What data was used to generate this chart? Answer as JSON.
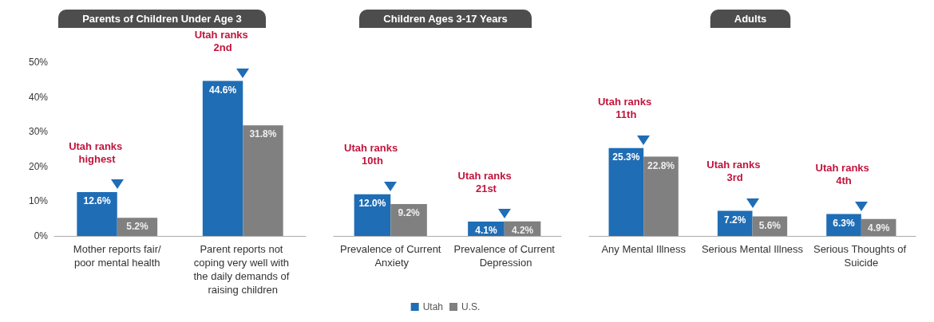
{
  "chart_data": [
    {
      "type": "bar",
      "title": "Parents of Children Under Age 3",
      "categories": [
        "Mother reports fair/poor mental health",
        "Parent reports not coping very well with the daily demands of raising children"
      ],
      "series": [
        {
          "color": "#1f6db5",
          "values": [
            12.6,
            44.6
          ],
          "value_labels": [
            "12.6%",
            "44.6%"
          ]
        },
        {
          "color": "#808080",
          "values": [
            5.2,
            31.8
          ],
          "value_labels": [
            "5.2%",
            "31.8%"
          ]
        }
      ],
      "ylim": [
        0,
        50
      ],
      "yticks": [
        {
          "value": 0,
          "label": "0%"
        },
        {
          "value": 10,
          "label": "10%"
        },
        {
          "value": 20,
          "label": "20%"
        },
        {
          "value": 30,
          "label": "30%"
        },
        {
          "value": 40,
          "label": "40%"
        },
        {
          "value": 50,
          "label": "50%"
        }
      ],
      "grid": false,
      "annotations": [
        {
          "text": "Utah ranks highest",
          "x": "Mother reports fair/poor mental health",
          "y": 12.6
        },
        {
          "text": "Utah ranks 2nd",
          "x": "Parent reports not coping very well with the daily demands of raising children",
          "y": 44.6
        }
      ]
    },
    {
      "type": "bar",
      "title": "Children Ages 3-17 Years",
      "categories": [
        "Prevalence of Current Anxiety",
        "Prevalence of Current Depression"
      ],
      "series": [
        {
          "name": "Utah",
          "color": "#1f6db5",
          "values": [
            12.0,
            4.1
          ],
          "value_labels": [
            "12.0%",
            "4.1%"
          ]
        },
        {
          "name": "U.S.",
          "color": "#808080",
          "values": [
            9.2,
            4.2
          ],
          "value_labels": [
            "9.2%",
            "4.2%"
          ]
        }
      ],
      "ylim": [
        0,
        50
      ],
      "tick_labels": "x",
      "grid": false,
      "legend": "bottom",
      "annotations": [
        {
          "text": "Utah ranks 10th",
          "x": "Prevalence of Current Anxiety",
          "y": 12.0
        },
        {
          "text": "Utah ranks 21st",
          "x": "Prevalence of Current Depression",
          "y": 4.1
        }
      ]
    },
    {
      "type": "bar",
      "title": "Adults",
      "categories": [
        "Any Mental Illness",
        "Serious Mental Illness",
        "Serious Thoughts of Suicide"
      ],
      "series": [
        {
          "color": "#1f6db5",
          "values": [
            25.3,
            7.2,
            6.3
          ],
          "value_labels": [
            "25.3%",
            "7.2%",
            "6.3%"
          ]
        },
        {
          "color": "#808080",
          "values": [
            22.8,
            5.6,
            4.9
          ],
          "value_labels": [
            "22.8%",
            "5.6%",
            "4.9%"
          ]
        }
      ],
      "ylim": [
        0,
        50
      ],
      "tick_labels": "x",
      "grid": false,
      "annotations": [
        {
          "text": "Utah ranks 11th",
          "x": "Any Mental Illness",
          "y": 25.3
        },
        {
          "text": "Utah ranks 3rd",
          "x": "Serious Mental Illness",
          "y": 7.2
        },
        {
          "text": "Utah ranks 4th",
          "x": "Serious Thoughts of Suicide",
          "y": 6.3
        }
      ]
    }
  ]
}
